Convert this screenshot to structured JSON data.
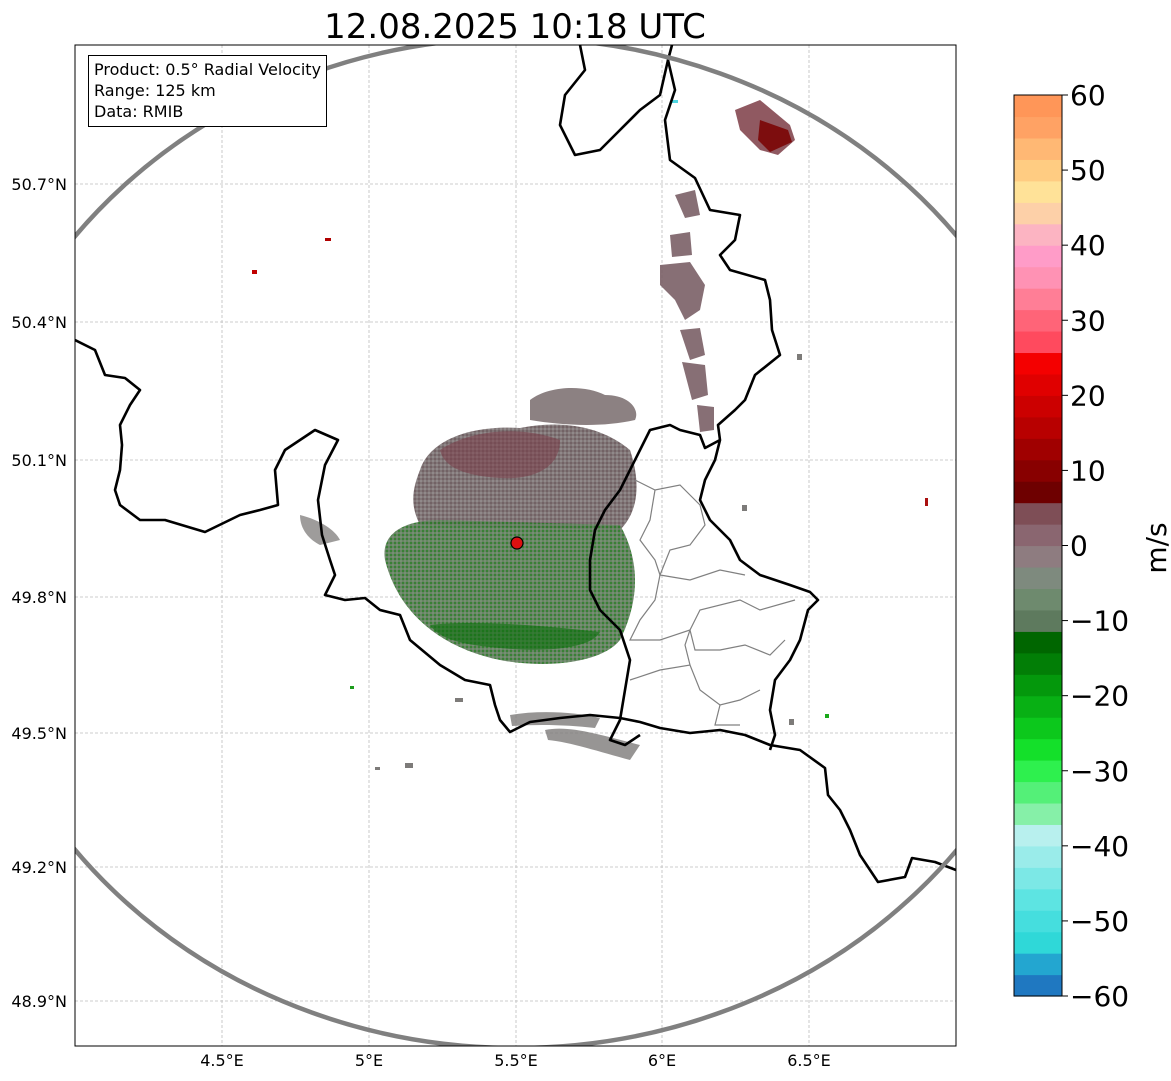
{
  "title": "12.08.2025 10:18 UTC",
  "info": {
    "product": "Product: 0.5° Radial Velocity",
    "range": "Range: 125 km",
    "source": "Data: RMIB"
  },
  "axes": {
    "lat_ticks": [
      "50.7°N",
      "50.4°N",
      "50.1°N",
      "49.8°N",
      "49.5°N",
      "49.2°N",
      "48.9°N"
    ],
    "lon_ticks": [
      "4.5°E",
      "5°E",
      "5.5°E",
      "6°E",
      "6.5°E"
    ]
  },
  "colorbar": {
    "unit": "m/s",
    "ticks": [
      "60",
      "50",
      "40",
      "30",
      "20",
      "10",
      "0",
      "−10",
      "−20",
      "−30",
      "−40",
      "−50",
      "−60"
    ],
    "range": [
      -60,
      60
    ],
    "colors": [
      "#1f78c1",
      "#23a6d0",
      "#2fd8d8",
      "#45dede",
      "#5de4e2",
      "#7ce8e6",
      "#9aecea",
      "#b8f0ee",
      "#86f0a8",
      "#54f078",
      "#2ef04e",
      "#14e02a",
      "#0cc81c",
      "#08b014",
      "#04980c",
      "#027e06",
      "#006600",
      "#5e7a5e",
      "#6e8a6e",
      "#7e8a7e",
      "#8e7c80",
      "#8a6670",
      "#7e4e56",
      "#6e0000",
      "#880000",
      "#a00000",
      "#b80000",
      "#cc0000",
      "#e00000",
      "#f40000",
      "#ff4a5e",
      "#ff6478",
      "#ff7e96",
      "#ff92b4",
      "#ff9cc8",
      "#fcb4c2",
      "#fdd0a8",
      "#ffe298",
      "#ffcc82",
      "#ffb874",
      "#ffa264",
      "#ff9658"
    ]
  },
  "radar_site": {
    "lat": 49.914,
    "lon": 5.506
  },
  "legend_text": ""
}
